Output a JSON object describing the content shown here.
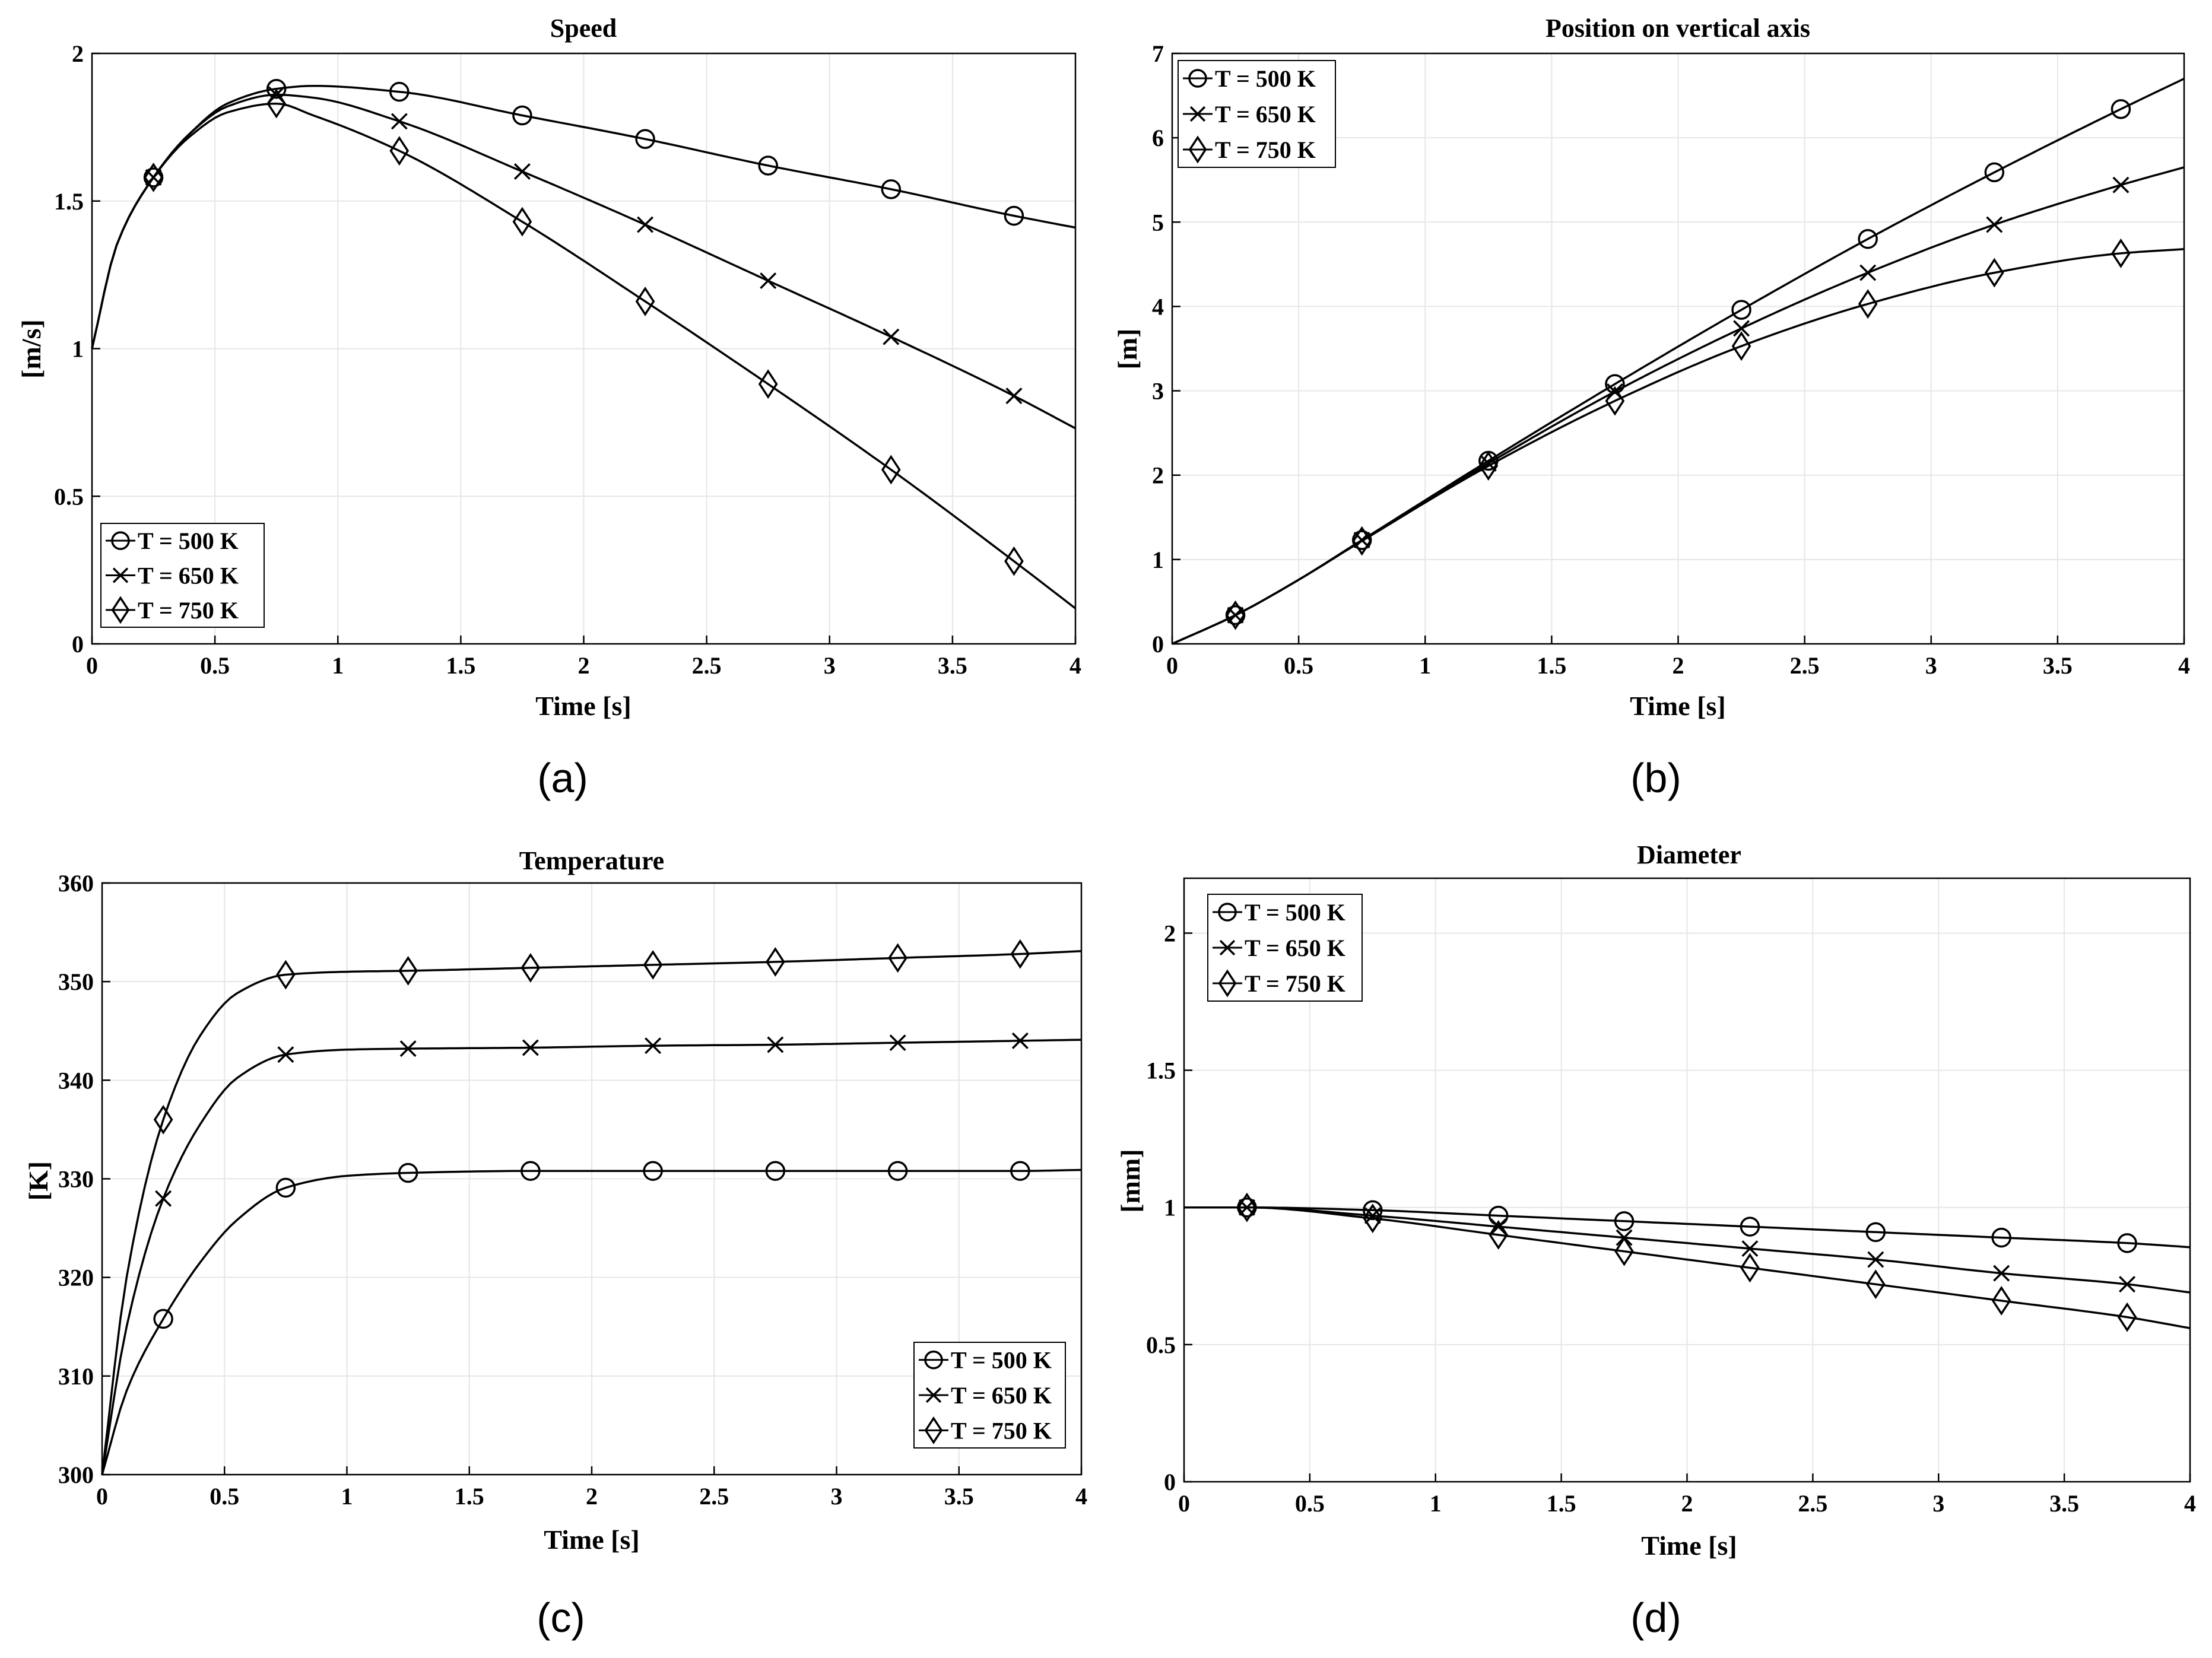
{
  "figure": {
    "background": "#ffffff",
    "line_color": "#000000",
    "grid_color": "#e6e6e6"
  },
  "chart_data": [
    {
      "panel": "(a)",
      "type": "line",
      "title": "Speed",
      "xlabel": "Time [s]",
      "ylabel": "[m/s]",
      "xlim": [
        0,
        4
      ],
      "ylim": [
        0,
        2
      ],
      "xticks": [
        0,
        0.5,
        1,
        1.5,
        2,
        2.5,
        3,
        3.5,
        4
      ],
      "yticks": [
        0,
        0.5,
        1,
        1.5,
        2
      ],
      "grid": true,
      "legend_position": "bottom-left",
      "series": [
        {
          "name": "T = 500 K",
          "marker": "circle",
          "x": [
            0,
            0.1,
            0.25,
            0.4,
            0.55,
            0.75,
            0.9,
            1.25,
            1.75,
            2.25,
            2.75,
            3.25,
            3.75,
            4
          ],
          "y": [
            1.0,
            1.35,
            1.58,
            1.73,
            1.83,
            1.88,
            1.89,
            1.87,
            1.79,
            1.71,
            1.62,
            1.54,
            1.45,
            1.41
          ],
          "marker_x": [
            0.25,
            0.75,
            1.25,
            1.75,
            2.25,
            2.75,
            3.25,
            3.75
          ],
          "marker_y": [
            1.58,
            1.88,
            1.87,
            1.79,
            1.71,
            1.62,
            1.54,
            1.45
          ]
        },
        {
          "name": "T = 650 K",
          "marker": "x",
          "x": [
            0,
            0.1,
            0.25,
            0.4,
            0.55,
            0.75,
            0.9,
            1.25,
            1.75,
            2.25,
            2.75,
            3.25,
            3.75,
            4
          ],
          "y": [
            1.0,
            1.35,
            1.58,
            1.73,
            1.82,
            1.86,
            1.85,
            1.77,
            1.6,
            1.42,
            1.23,
            1.04,
            0.84,
            0.73
          ],
          "marker_x": [
            0.25,
            0.75,
            1.25,
            1.75,
            2.25,
            2.75,
            3.25,
            3.75
          ],
          "marker_y": [
            1.58,
            1.86,
            1.77,
            1.6,
            1.42,
            1.23,
            1.04,
            0.84
          ]
        },
        {
          "name": "T = 750 K",
          "marker": "diamond",
          "x": [
            0,
            0.1,
            0.25,
            0.4,
            0.55,
            0.75,
            0.9,
            1.25,
            1.75,
            2.25,
            2.75,
            3.25,
            3.75,
            4
          ],
          "y": [
            1.0,
            1.35,
            1.58,
            1.72,
            1.8,
            1.83,
            1.79,
            1.67,
            1.43,
            1.16,
            0.88,
            0.59,
            0.28,
            0.12
          ],
          "marker_x": [
            0.25,
            0.75,
            1.25,
            1.75,
            2.25,
            2.75,
            3.25,
            3.75
          ],
          "marker_y": [
            1.58,
            1.83,
            1.67,
            1.43,
            1.16,
            0.88,
            0.59,
            0.28
          ]
        }
      ]
    },
    {
      "panel": "(b)",
      "type": "line",
      "title": "Position on vertical axis",
      "xlabel": "Time [s]",
      "ylabel": "[m]",
      "xlim": [
        0,
        4
      ],
      "ylim": [
        0,
        7
      ],
      "xticks": [
        0,
        0.5,
        1,
        1.5,
        2,
        2.5,
        3,
        3.5,
        4
      ],
      "yticks": [
        0,
        1,
        2,
        3,
        4,
        5,
        6,
        7
      ],
      "grid": true,
      "legend_position": "top-left",
      "series": [
        {
          "name": "T = 500 K",
          "marker": "circle",
          "x": [
            0,
            0.25,
            0.5,
            0.75,
            1.25,
            1.75,
            2.25,
            2.75,
            3.25,
            3.75,
            4
          ],
          "y": [
            0,
            0.34,
            0.76,
            1.23,
            2.17,
            3.08,
            3.96,
            4.8,
            5.59,
            6.34,
            6.7
          ],
          "marker_x": [
            0.25,
            0.75,
            1.25,
            1.75,
            2.25,
            2.75,
            3.25,
            3.75
          ],
          "marker_y": [
            0.34,
            1.23,
            2.17,
            3.08,
            3.96,
            4.8,
            5.59,
            6.34
          ]
        },
        {
          "name": "T = 650 K",
          "marker": "x",
          "x": [
            0,
            0.25,
            0.5,
            0.75,
            1.25,
            1.75,
            2.25,
            2.75,
            3.25,
            3.75,
            4
          ],
          "y": [
            0,
            0.34,
            0.76,
            1.23,
            2.14,
            2.99,
            3.74,
            4.4,
            4.97,
            5.44,
            5.65
          ],
          "marker_x": [
            0.25,
            0.75,
            1.25,
            1.75,
            2.25,
            2.75,
            3.25,
            3.75
          ],
          "marker_y": [
            0.34,
            1.23,
            2.14,
            2.99,
            3.74,
            4.4,
            4.97,
            5.44
          ]
        },
        {
          "name": "T = 750 K",
          "marker": "diamond",
          "x": [
            0,
            0.25,
            0.5,
            0.75,
            1.25,
            1.75,
            2.25,
            2.75,
            3.25,
            3.75,
            4
          ],
          "y": [
            0,
            0.34,
            0.76,
            1.22,
            2.11,
            2.88,
            3.53,
            4.03,
            4.4,
            4.63,
            4.68
          ],
          "marker_x": [
            0.25,
            0.75,
            1.25,
            1.75,
            2.25,
            2.75,
            3.25,
            3.75
          ],
          "marker_y": [
            0.34,
            1.22,
            2.11,
            2.88,
            3.53,
            4.03,
            4.4,
            4.63
          ]
        }
      ]
    },
    {
      "panel": "(c)",
      "type": "line",
      "title": "Temperature",
      "xlabel": "Time [s]",
      "ylabel": "[K]",
      "xlim": [
        0,
        4
      ],
      "ylim": [
        300,
        360
      ],
      "xticks": [
        0,
        0.5,
        1,
        1.5,
        2,
        2.5,
        3,
        3.5,
        4
      ],
      "yticks": [
        300,
        310,
        320,
        330,
        340,
        350,
        360
      ],
      "grid": true,
      "legend_position": "bottom-right",
      "series": [
        {
          "name": "T = 500 K",
          "marker": "circle",
          "x": [
            0,
            0.1,
            0.25,
            0.4,
            0.55,
            0.75,
            1.0,
            1.25,
            1.75,
            2.25,
            2.75,
            3.25,
            3.75,
            4
          ],
          "y": [
            300,
            308.5,
            315.8,
            321.5,
            325.8,
            329.1,
            330.3,
            330.6,
            330.8,
            330.8,
            330.8,
            330.8,
            330.8,
            330.9
          ],
          "marker_x": [
            0.25,
            0.75,
            1.25,
            1.75,
            2.25,
            2.75,
            3.25,
            3.75
          ],
          "marker_y": [
            315.8,
            329.1,
            330.6,
            330.8,
            330.8,
            330.8,
            330.8,
            330.8
          ]
        },
        {
          "name": "T = 650 K",
          "marker": "x",
          "x": [
            0,
            0.1,
            0.25,
            0.4,
            0.55,
            0.75,
            1.0,
            1.25,
            1.75,
            2.25,
            2.75,
            3.25,
            3.75,
            4
          ],
          "y": [
            300,
            315,
            328,
            335.5,
            340.2,
            342.6,
            343.1,
            343.2,
            343.3,
            343.5,
            343.6,
            343.8,
            344,
            344.1
          ],
          "marker_x": [
            0.25,
            0.75,
            1.25,
            1.75,
            2.25,
            2.75,
            3.25,
            3.75
          ],
          "marker_y": [
            328,
            342.6,
            343.2,
            343.3,
            343.5,
            343.6,
            343.8,
            344
          ]
        },
        {
          "name": "T = 750 K",
          "marker": "diamond",
          "x": [
            0,
            0.1,
            0.25,
            0.4,
            0.55,
            0.75,
            1.0,
            1.25,
            1.75,
            2.25,
            2.75,
            3.25,
            3.75,
            4
          ],
          "y": [
            300,
            320,
            336,
            344.5,
            348.8,
            350.7,
            351,
            351.1,
            351.4,
            351.7,
            352,
            352.4,
            352.8,
            353.1
          ],
          "marker_x": [
            0.25,
            0.75,
            1.25,
            1.75,
            2.25,
            2.75,
            3.25,
            3.75
          ],
          "marker_y": [
            336,
            350.7,
            351.1,
            351.4,
            351.7,
            352,
            352.4,
            352.8
          ]
        }
      ]
    },
    {
      "panel": "(d)",
      "type": "line",
      "title": "Diameter",
      "xlabel": "Time [s]",
      "ylabel": "[mm]",
      "xlim": [
        0,
        4
      ],
      "ylim": [
        0,
        2.2
      ],
      "xticks": [
        0,
        0.5,
        1,
        1.5,
        2,
        2.5,
        3,
        3.5,
        4
      ],
      "yticks": [
        0,
        0.5,
        1,
        1.5,
        2
      ],
      "grid": true,
      "legend_position": "top-left",
      "series": [
        {
          "name": "T = 500 K",
          "marker": "circle",
          "x": [
            0,
            0.25,
            0.75,
            1.25,
            1.75,
            2.25,
            2.75,
            3.25,
            3.75,
            4
          ],
          "y": [
            1.0,
            1.0,
            0.99,
            0.97,
            0.95,
            0.93,
            0.91,
            0.89,
            0.87,
            0.855
          ],
          "marker_x": [
            0.25,
            0.75,
            1.25,
            1.75,
            2.25,
            2.75,
            3.25,
            3.75
          ],
          "marker_y": [
            1.0,
            0.99,
            0.97,
            0.95,
            0.93,
            0.91,
            0.89,
            0.87
          ]
        },
        {
          "name": "T = 650 K",
          "marker": "x",
          "x": [
            0,
            0.25,
            0.75,
            1.25,
            1.75,
            2.25,
            2.75,
            3.25,
            3.75,
            4
          ],
          "y": [
            1.0,
            1.0,
            0.97,
            0.93,
            0.89,
            0.85,
            0.81,
            0.76,
            0.72,
            0.69
          ],
          "marker_x": [
            0.25,
            0.75,
            1.25,
            1.75,
            2.25,
            2.75,
            3.25,
            3.75
          ],
          "marker_y": [
            1.0,
            0.97,
            0.93,
            0.89,
            0.85,
            0.81,
            0.76,
            0.72
          ]
        },
        {
          "name": "T = 750 K",
          "marker": "diamond",
          "x": [
            0,
            0.25,
            0.75,
            1.25,
            1.75,
            2.25,
            2.75,
            3.25,
            3.75,
            4
          ],
          "y": [
            1.0,
            1.0,
            0.96,
            0.9,
            0.84,
            0.78,
            0.72,
            0.66,
            0.6,
            0.56
          ],
          "marker_x": [
            0.25,
            0.75,
            1.25,
            1.75,
            2.25,
            2.75,
            3.25,
            3.75
          ],
          "marker_y": [
            1.0,
            0.96,
            0.9,
            0.84,
            0.78,
            0.72,
            0.66,
            0.6
          ]
        }
      ]
    }
  ]
}
